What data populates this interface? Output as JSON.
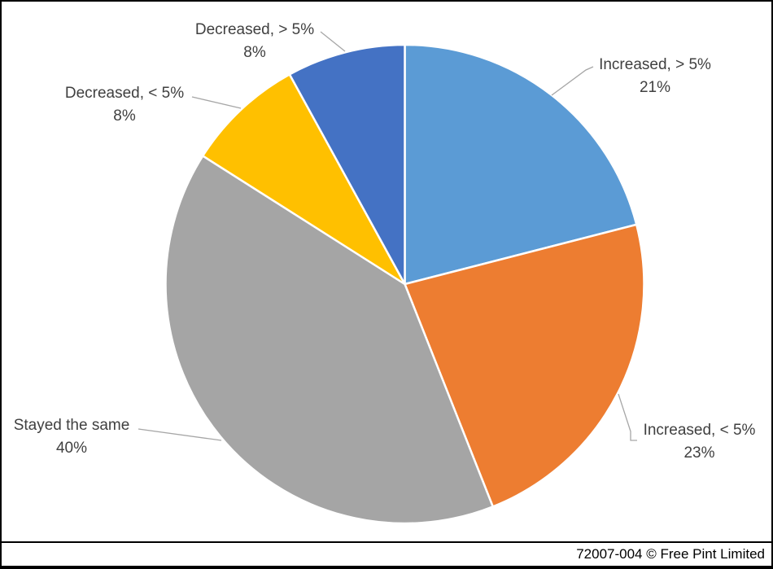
{
  "chart_data": {
    "type": "pie",
    "title": "",
    "direction": "clockwise",
    "start_angle_deg": 0,
    "legend_position": "none",
    "slices": [
      {
        "label": "Increased, > 5%",
        "value": 21,
        "pct_label": "21%",
        "color": "#5B9BD5"
      },
      {
        "label": "Increased, < 5%",
        "value": 23,
        "pct_label": "23%",
        "color": "#ED7D31"
      },
      {
        "label": "Stayed the same",
        "value": 40,
        "pct_label": "40%",
        "color": "#A5A5A5"
      },
      {
        "label": "Decreased, < 5%",
        "value": 8,
        "pct_label": "8%",
        "color": "#FFC000"
      },
      {
        "label": "Decreased, > 5%",
        "value": 8,
        "pct_label": "8%",
        "color": "#4472C4"
      }
    ],
    "label_color": "#404040",
    "slice_border_color": "#FFFFFF",
    "leader_line_color": "#A6A6A6"
  },
  "footer": {
    "attribution": "72007-004 © Free Pint Limited"
  }
}
